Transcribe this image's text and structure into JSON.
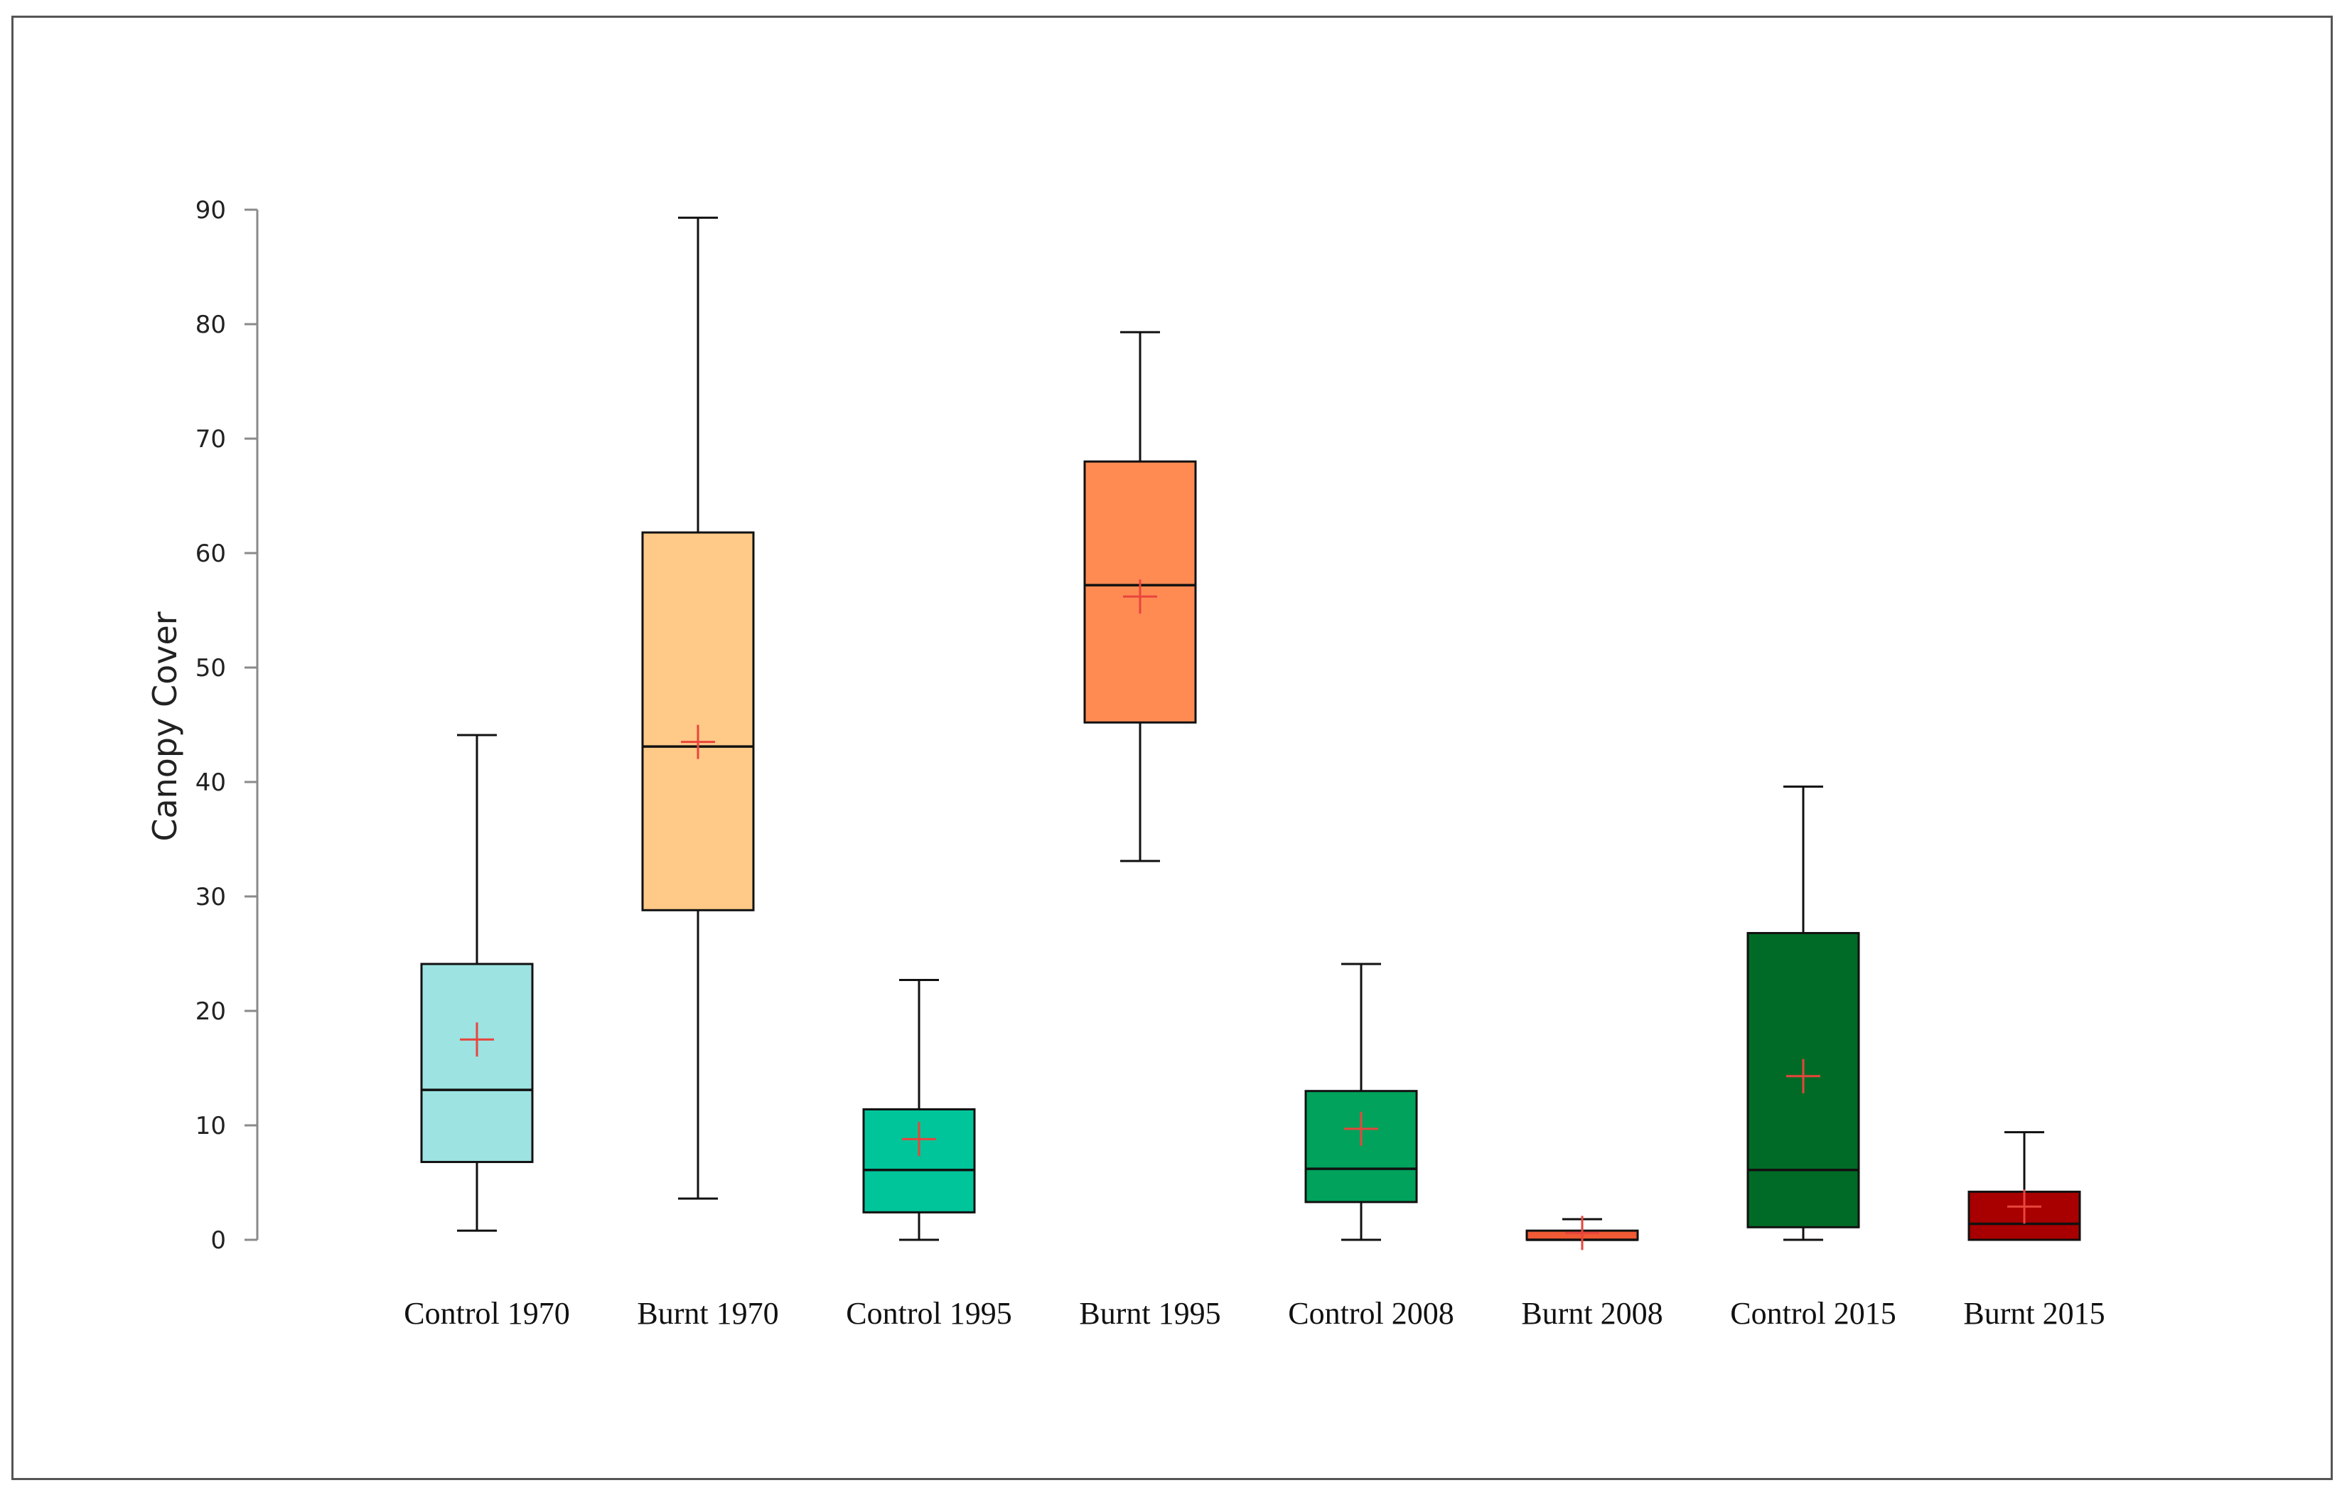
{
  "chart_data": {
    "type": "box",
    "title": "",
    "xlabel": "",
    "ylabel": "Canopy Cover",
    "ylim": [
      0,
      90
    ],
    "yticks": [
      0,
      10,
      20,
      30,
      40,
      50,
      60,
      70,
      80,
      90
    ],
    "grid": false,
    "legend": "none",
    "mean_marker": "+",
    "colors": {
      "mean": "#e8453c",
      "line": "#111111",
      "axis": "#8a8a8a"
    },
    "boxes": [
      {
        "category": "Control 1970",
        "min": 0.8,
        "q1": 6.8,
        "median": 13.1,
        "q3": 24.1,
        "max": 44.1,
        "mean": 17.5,
        "color": "#9ce3e2"
      },
      {
        "category": "Burnt 1970",
        "min": 3.6,
        "q1": 28.8,
        "median": 43.1,
        "q3": 61.8,
        "max": 89.3,
        "mean": 43.5,
        "color": "#ffc987"
      },
      {
        "category": "Control 1995",
        "min": 0.0,
        "q1": 2.4,
        "median": 6.1,
        "q3": 11.4,
        "max": 22.7,
        "mean": 8.8,
        "color": "#00c49a"
      },
      {
        "category": "Burnt 1995",
        "min": 33.1,
        "q1": 45.2,
        "median": 57.2,
        "q3": 68.0,
        "max": 79.3,
        "mean": 56.2,
        "color": "#ff8b53"
      },
      {
        "category": "Control 2008",
        "min": 0.0,
        "q1": 3.3,
        "median": 6.2,
        "q3": 13.0,
        "max": 24.1,
        "mean": 9.7,
        "color": "#00a25c"
      },
      {
        "category": "Burnt 2008",
        "min": 0.0,
        "q1": 0.0,
        "median": 0.0,
        "q3": 0.8,
        "max": 1.8,
        "mean": 0.6,
        "color": "#f05a35"
      },
      {
        "category": "Control 2015",
        "min": 0.0,
        "q1": 1.1,
        "median": 6.1,
        "q3": 26.8,
        "max": 39.6,
        "mean": 14.3,
        "color": "#006b26"
      },
      {
        "category": "Burnt 2015",
        "min": 0.0,
        "q1": 0.0,
        "median": 1.4,
        "q3": 4.2,
        "max": 9.4,
        "mean": 2.9,
        "color": "#a80000"
      }
    ]
  }
}
